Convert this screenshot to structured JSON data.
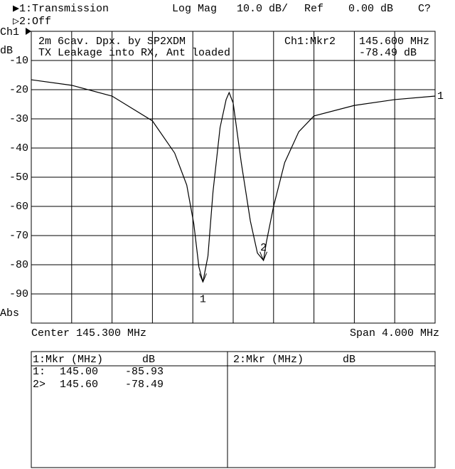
{
  "header": {
    "channel1": "▶1:Transmission",
    "format": "Log Mag",
    "scale": "10.0 dB/",
    "ref_label": "Ref",
    "ref_value": "0.00 dB",
    "status": "C?",
    "channel2": "▷2:Off"
  },
  "chart_data": {
    "type": "line",
    "title": "2m 6cav. Dpx. by SP2XDM",
    "subtitle": "TX Leakage into RX, Ant loaded",
    "channel_label": "Ch1",
    "y_unit": "dB",
    "y_mode": "Abs",
    "active_marker": "Ch1:Mkr2",
    "active_marker_freq": "145.600 MHz",
    "active_marker_value": "-78.49 dB",
    "x_left_label": "Center 145.300 MHz",
    "x_right_label": "Span 4.000 MHz",
    "xlim": [
      143.3,
      147.3
    ],
    "ylim": [
      -100,
      0
    ],
    "yticks": [
      -10,
      -20,
      -30,
      -40,
      -50,
      -60,
      -70,
      -80,
      -90
    ],
    "grid": true,
    "x": [
      143.3,
      143.7,
      144.1,
      144.5,
      144.72,
      144.84,
      144.91,
      144.96,
      145.0,
      145.05,
      145.1,
      145.17,
      145.23,
      145.26,
      145.3,
      145.38,
      145.47,
      145.54,
      145.6,
      145.63,
      145.7,
      145.81,
      145.95,
      146.1,
      146.5,
      146.9,
      147.3
    ],
    "series": [
      {
        "name": "1",
        "color": "#000000",
        "values": [
          -16.6,
          -18.5,
          -22.2,
          -30.7,
          -41.7,
          -52.7,
          -66,
          -80.7,
          -85.93,
          -77,
          -55,
          -33,
          -23.4,
          -21,
          -24.6,
          -45,
          -65,
          -76,
          -78.49,
          -72,
          -60,
          -45,
          -34.4,
          -29,
          -25.4,
          -23.4,
          -22.2
        ]
      }
    ],
    "markers": {
      "labels": [
        "1",
        "2"
      ],
      "x": [
        145.0,
        145.6
      ],
      "values": [
        -85.93,
        -78.49
      ]
    }
  },
  "marker_table": {
    "left_header": [
      "1:Mkr (MHz)",
      "dB"
    ],
    "right_header": [
      "2:Mkr (MHz)",
      "dB"
    ],
    "rows": [
      [
        "1:",
        "145.00",
        "-85.93"
      ],
      [
        "2>",
        "145.60",
        "-78.49"
      ]
    ]
  }
}
